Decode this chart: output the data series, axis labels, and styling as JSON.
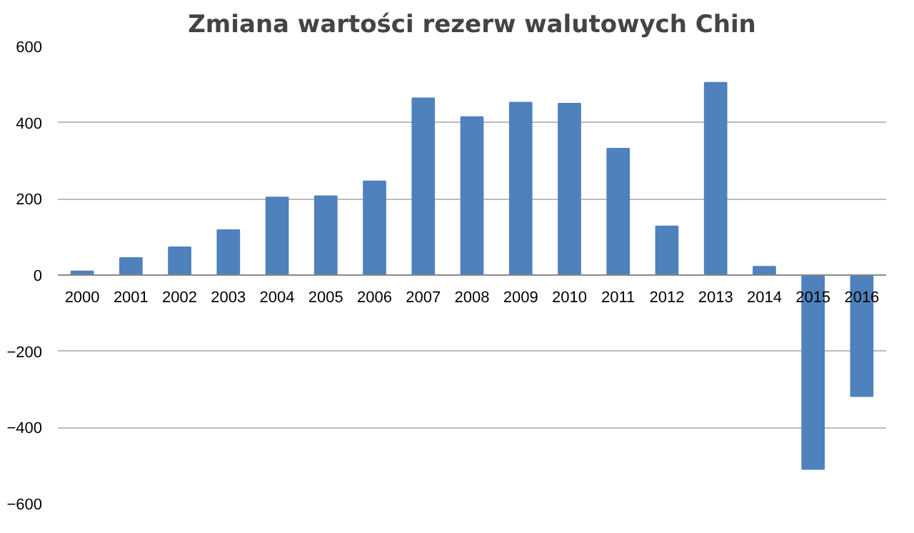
{
  "chart_data": {
    "type": "bar",
    "title": "Zmiana wartości rezerw walutowych Chin",
    "categories": [
      "2000",
      "2001",
      "2002",
      "2003",
      "2004",
      "2005",
      "2006",
      "2007",
      "2008",
      "2009",
      "2010",
      "2011",
      "2012",
      "2013",
      "2014",
      "2015",
      "2016"
    ],
    "values": [
      10,
      45,
      73,
      118,
      204,
      207,
      246,
      464,
      415,
      453,
      450,
      332,
      128,
      505,
      22,
      -509,
      -318
    ],
    "color": "#4f81bd",
    "ylim": [
      -600,
      600
    ],
    "yticks": [
      -600,
      -400,
      -200,
      0,
      200,
      400,
      600
    ],
    "grid": "y"
  }
}
